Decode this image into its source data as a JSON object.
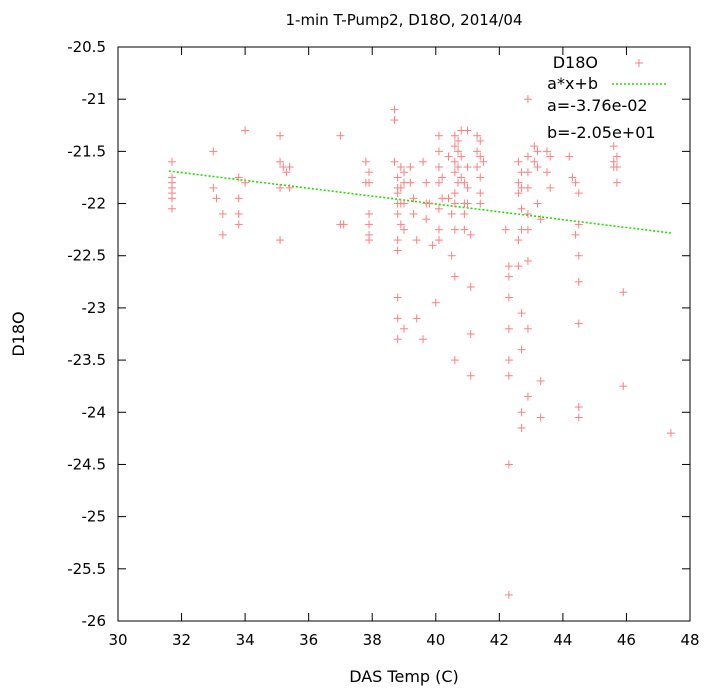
{
  "chart_data": {
    "type": "scatter",
    "title": "1-min T-Pump2, D18O, 2014/04",
    "xlabel": "DAS Temp (C)",
    "ylabel": "D18O",
    "xlim": [
      30,
      48
    ],
    "ylim": [
      -26,
      -20.5
    ],
    "xticks": [
      30,
      32,
      34,
      36,
      38,
      40,
      42,
      44,
      46,
      48
    ],
    "yticks": [
      -26,
      -25.5,
      -25,
      -24.5,
      -24,
      -23.5,
      -23,
      -22.5,
      -22,
      -21.5,
      -21,
      -20.5
    ],
    "x_tick_labels": [
      "30",
      "32",
      "34",
      "36",
      "38",
      "40",
      "42",
      "44",
      "46",
      "48"
    ],
    "y_tick_labels": [
      "-26",
      "-25.5",
      "-25",
      "-24.5",
      "-24",
      "-23.5",
      "-23",
      "-22.5",
      "-22",
      "-21.5",
      "-21",
      "-20.5"
    ],
    "grid": false,
    "legend_position": "top-right",
    "colors": {
      "points": "#ff7f7f",
      "fit": "#22dd00"
    },
    "series": [
      {
        "name": "D18O",
        "kind": "points",
        "points": [
          [
            31.7,
            -21.6
          ],
          [
            31.7,
            -21.75
          ],
          [
            31.7,
            -21.8
          ],
          [
            31.7,
            -21.85
          ],
          [
            31.7,
            -21.9
          ],
          [
            31.7,
            -21.95
          ],
          [
            31.7,
            -22.05
          ],
          [
            33.0,
            -21.5
          ],
          [
            33.0,
            -21.85
          ],
          [
            33.1,
            -21.95
          ],
          [
            33.3,
            -22.1
          ],
          [
            33.3,
            -22.3
          ],
          [
            33.8,
            -21.75
          ],
          [
            33.8,
            -21.95
          ],
          [
            33.8,
            -22.1
          ],
          [
            33.8,
            -22.2
          ],
          [
            34.0,
            -21.3
          ],
          [
            34.0,
            -21.8
          ],
          [
            35.1,
            -21.35
          ],
          [
            35.1,
            -21.6
          ],
          [
            35.1,
            -21.85
          ],
          [
            35.1,
            -22.35
          ],
          [
            35.2,
            -21.65
          ],
          [
            35.3,
            -21.7
          ],
          [
            35.4,
            -21.65
          ],
          [
            35.4,
            -21.85
          ],
          [
            37.0,
            -21.35
          ],
          [
            37.0,
            -22.2
          ],
          [
            37.1,
            -22.2
          ],
          [
            37.8,
            -21.6
          ],
          [
            37.8,
            -21.8
          ],
          [
            37.9,
            -21.7
          ],
          [
            37.9,
            -21.8
          ],
          [
            37.9,
            -22.1
          ],
          [
            37.9,
            -22.2
          ],
          [
            37.9,
            -22.3
          ],
          [
            37.9,
            -22.35
          ],
          [
            38.7,
            -21.1
          ],
          [
            38.7,
            -21.2
          ],
          [
            38.7,
            -21.6
          ],
          [
            38.8,
            -21.75
          ],
          [
            38.8,
            -21.85
          ],
          [
            38.8,
            -21.9
          ],
          [
            38.8,
            -22.0
          ],
          [
            38.8,
            -22.1
          ],
          [
            38.8,
            -22.35
          ],
          [
            38.8,
            -22.45
          ],
          [
            38.8,
            -22.9
          ],
          [
            38.8,
            -23.1
          ],
          [
            38.8,
            -23.3
          ],
          [
            38.9,
            -21.65
          ],
          [
            38.9,
            -21.85
          ],
          [
            38.9,
            -22.0
          ],
          [
            38.9,
            -22.2
          ],
          [
            39.0,
            -21.7
          ],
          [
            39.0,
            -21.8
          ],
          [
            39.0,
            -22.0
          ],
          [
            39.0,
            -22.25
          ],
          [
            39.0,
            -23.2
          ],
          [
            39.2,
            -21.65
          ],
          [
            39.2,
            -21.8
          ],
          [
            39.3,
            -21.95
          ],
          [
            39.3,
            -22.1
          ],
          [
            39.4,
            -22.35
          ],
          [
            39.4,
            -23.1
          ],
          [
            39.6,
            -23.3
          ],
          [
            39.6,
            -21.6
          ],
          [
            39.7,
            -21.8
          ],
          [
            39.7,
            -22.0
          ],
          [
            39.7,
            -22.15
          ],
          [
            39.8,
            -22.0
          ],
          [
            39.9,
            -22.4
          ],
          [
            40.0,
            -22.95
          ],
          [
            40.1,
            -21.35
          ],
          [
            40.1,
            -21.5
          ],
          [
            40.1,
            -21.65
          ],
          [
            40.1,
            -21.8
          ],
          [
            40.1,
            -22.05
          ],
          [
            40.1,
            -22.25
          ],
          [
            40.1,
            -22.35
          ],
          [
            40.2,
            -21.75
          ],
          [
            40.2,
            -21.95
          ],
          [
            40.4,
            -21.55
          ],
          [
            40.4,
            -21.95
          ],
          [
            40.5,
            -22.1
          ],
          [
            40.5,
            -22.5
          ],
          [
            40.6,
            -21.35
          ],
          [
            40.6,
            -21.45
          ],
          [
            40.6,
            -21.6
          ],
          [
            40.6,
            -21.7
          ],
          [
            40.6,
            -21.9
          ],
          [
            40.6,
            -22.0
          ],
          [
            40.6,
            -22.25
          ],
          [
            40.6,
            -23.5
          ],
          [
            40.6,
            -22.7
          ],
          [
            40.7,
            -21.4
          ],
          [
            40.7,
            -21.5
          ],
          [
            40.7,
            -21.65
          ],
          [
            40.7,
            -21.8
          ],
          [
            40.8,
            -21.3
          ],
          [
            40.8,
            -21.55
          ],
          [
            40.8,
            -21.75
          ],
          [
            40.9,
            -21.8
          ],
          [
            40.9,
            -22.0
          ],
          [
            40.9,
            -22.25
          ],
          [
            40.9,
            -22.1
          ],
          [
            41.0,
            -21.3
          ],
          [
            41.0,
            -21.65
          ],
          [
            41.0,
            -21.85
          ],
          [
            41.0,
            -22.0
          ],
          [
            41.1,
            -22.3
          ],
          [
            41.1,
            -22.8
          ],
          [
            41.1,
            -23.25
          ],
          [
            41.1,
            -23.65
          ],
          [
            41.3,
            -21.35
          ],
          [
            41.3,
            -21.5
          ],
          [
            41.3,
            -21.65
          ],
          [
            41.4,
            -21.4
          ],
          [
            41.4,
            -21.55
          ],
          [
            41.4,
            -21.75
          ],
          [
            41.4,
            -21.9
          ],
          [
            41.4,
            -22.0
          ],
          [
            41.5,
            -21.6
          ],
          [
            42.2,
            -22.25
          ],
          [
            42.3,
            -22.6
          ],
          [
            42.3,
            -22.7
          ],
          [
            42.3,
            -22.9
          ],
          [
            42.3,
            -23.2
          ],
          [
            42.3,
            -23.5
          ],
          [
            42.3,
            -23.65
          ],
          [
            42.3,
            -24.5
          ],
          [
            42.3,
            -25.75
          ],
          [
            42.6,
            -21.6
          ],
          [
            42.6,
            -21.8
          ],
          [
            42.6,
            -21.9
          ],
          [
            42.6,
            -22.35
          ],
          [
            42.6,
            -22.6
          ],
          [
            42.7,
            -21.7
          ],
          [
            42.7,
            -21.85
          ],
          [
            42.7,
            -22.05
          ],
          [
            42.7,
            -22.25
          ],
          [
            42.7,
            -23.05
          ],
          [
            42.7,
            -23.4
          ],
          [
            42.7,
            -24.0
          ],
          [
            42.7,
            -24.15
          ],
          [
            42.9,
            -21.0
          ],
          [
            42.9,
            -21.55
          ],
          [
            42.9,
            -21.7
          ],
          [
            42.9,
            -21.85
          ],
          [
            42.9,
            -22.1
          ],
          [
            42.9,
            -22.25
          ],
          [
            42.9,
            -22.55
          ],
          [
            42.9,
            -23.2
          ],
          [
            42.9,
            -23.85
          ],
          [
            43.1,
            -21.45
          ],
          [
            43.1,
            -21.6
          ],
          [
            43.2,
            -21.5
          ],
          [
            43.2,
            -21.65
          ],
          [
            43.2,
            -22.0
          ],
          [
            43.3,
            -22.15
          ],
          [
            43.3,
            -23.7
          ],
          [
            43.3,
            -24.05
          ],
          [
            43.5,
            -21.5
          ],
          [
            43.5,
            -21.7
          ],
          [
            43.6,
            -21.55
          ],
          [
            43.6,
            -21.85
          ],
          [
            44.2,
            -21.55
          ],
          [
            44.3,
            -21.75
          ],
          [
            44.4,
            -21.8
          ],
          [
            44.4,
            -22.3
          ],
          [
            44.5,
            -21.9
          ],
          [
            44.5,
            -22.2
          ],
          [
            44.5,
            -22.5
          ],
          [
            44.5,
            -22.75
          ],
          [
            44.5,
            -23.15
          ],
          [
            44.5,
            -23.95
          ],
          [
            44.5,
            -24.05
          ],
          [
            45.6,
            -21.45
          ],
          [
            45.6,
            -21.6
          ],
          [
            45.6,
            -21.65
          ],
          [
            45.7,
            -21.55
          ],
          [
            45.7,
            -21.65
          ],
          [
            45.7,
            -21.8
          ],
          [
            45.9,
            -22.85
          ],
          [
            45.9,
            -23.75
          ],
          [
            47.4,
            -24.2
          ]
        ]
      },
      {
        "name": "a*x+b",
        "kind": "line",
        "x_range": [
          31.6,
          47.4
        ],
        "a": -0.0376,
        "b": -20.5
      }
    ],
    "annotations": [
      "a=-3.76e-02",
      "b=-2.05e+01"
    ]
  }
}
